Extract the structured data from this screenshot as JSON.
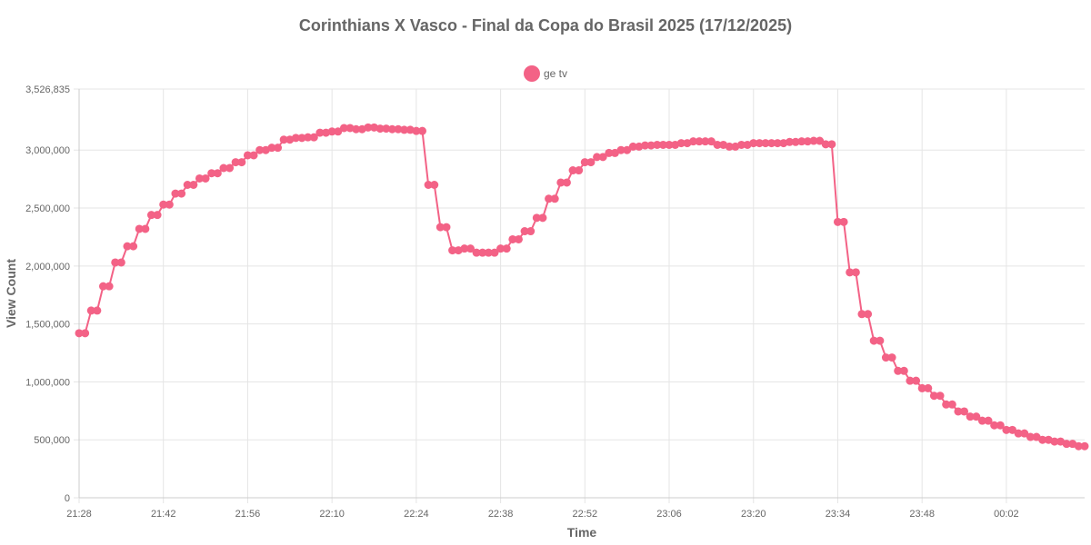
{
  "chart_data": {
    "type": "line",
    "title": "Corinthians X Vasco - Final da Copa do Brasil 2025 (17/12/2025)",
    "xlabel": "Time",
    "ylabel": "View Count",
    "ylim": [
      0,
      3526835
    ],
    "y_ticks": [
      {
        "value": 0,
        "label": "0"
      },
      {
        "value": 500000,
        "label": "500,000"
      },
      {
        "value": 1000000,
        "label": "1,000,000"
      },
      {
        "value": 1500000,
        "label": "1,500,000"
      },
      {
        "value": 2000000,
        "label": "2,000,000"
      },
      {
        "value": 2500000,
        "label": "2,500,000"
      },
      {
        "value": 3000000,
        "label": "3,000,000"
      },
      {
        "value": 3526835,
        "label": "3,526,835"
      }
    ],
    "x_ticks": [
      "21:28",
      "21:42",
      "21:56",
      "22:10",
      "22:24",
      "22:38",
      "22:52",
      "23:06",
      "23:20",
      "23:34",
      "23:48",
      "00:02"
    ],
    "x_range_minutes": [
      0,
      167
    ],
    "x_tick_step_minutes": 14,
    "grid": true,
    "legend_position": "top-center",
    "series": [
      {
        "name": "ge tv",
        "color": "#f36286",
        "values": [
          1420000,
          1420000,
          1615000,
          1615000,
          1825000,
          1825000,
          2030000,
          2030000,
          2170000,
          2170000,
          2320000,
          2320000,
          2440000,
          2440000,
          2530000,
          2530000,
          2625000,
          2625000,
          2700000,
          2700000,
          2755000,
          2755000,
          2800000,
          2800000,
          2845000,
          2845000,
          2895000,
          2895000,
          2955000,
          2955000,
          3000000,
          3000000,
          3020000,
          3020000,
          3090000,
          3090000,
          3105000,
          3105000,
          3110000,
          3110000,
          3150000,
          3150000,
          3160000,
          3160000,
          3190000,
          3190000,
          3180000,
          3180000,
          3195000,
          3195000,
          3185000,
          3185000,
          3180000,
          3180000,
          3175000,
          3175000,
          3165000,
          3165000,
          2700000,
          2700000,
          2335000,
          2335000,
          2135000,
          2135000,
          2150000,
          2150000,
          2115000,
          2115000,
          2115000,
          2115000,
          2150000,
          2150000,
          2230000,
          2230000,
          2300000,
          2300000,
          2415000,
          2415000,
          2580000,
          2580000,
          2720000,
          2720000,
          2825000,
          2825000,
          2895000,
          2895000,
          2940000,
          2940000,
          2975000,
          2975000,
          3000000,
          3000000,
          3030000,
          3030000,
          3040000,
          3040000,
          3045000,
          3045000,
          3045000,
          3045000,
          3060000,
          3060000,
          3075000,
          3075000,
          3075000,
          3075000,
          3045000,
          3045000,
          3030000,
          3030000,
          3045000,
          3045000,
          3060000,
          3060000,
          3060000,
          3060000,
          3060000,
          3060000,
          3070000,
          3070000,
          3075000,
          3075000,
          3080000,
          3080000,
          3050000,
          3050000,
          2380000,
          2380000,
          1945000,
          1945000,
          1585000,
          1585000,
          1355000,
          1355000,
          1210000,
          1210000,
          1095000,
          1095000,
          1010000,
          1010000,
          945000,
          945000,
          880000,
          880000,
          805000,
          805000,
          745000,
          745000,
          700000,
          700000,
          665000,
          665000,
          625000,
          625000,
          585000,
          585000,
          555000,
          555000,
          525000,
          525000,
          500000,
          500000,
          485000,
          485000,
          465000,
          465000,
          445000,
          445000
        ]
      }
    ]
  }
}
